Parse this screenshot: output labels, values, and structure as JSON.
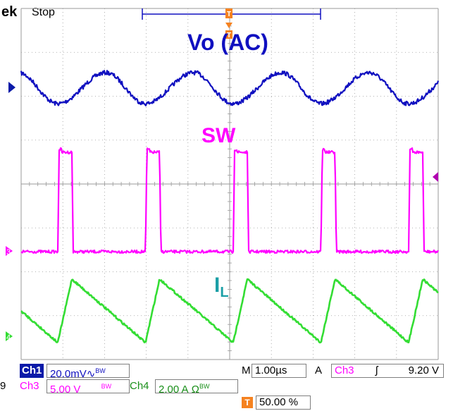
{
  "header": {
    "brand": "ek",
    "run_status": "Stop",
    "trigger_marker": "T"
  },
  "traces": {
    "vo_label": "Vo (AC)",
    "sw_label": "SW",
    "il_label": "I",
    "il_sub": "L"
  },
  "channels": {
    "ch1": {
      "label": "Ch1",
      "scale": "20.0mV",
      "suffix": "∿",
      "bw": "BW"
    },
    "ch3": {
      "label": "Ch3",
      "scale": "5.00 V",
      "bw": "BW"
    },
    "ch4": {
      "label": "Ch4",
      "scale": "2.00 A",
      "suffix": "Ω",
      "bw": "BW"
    }
  },
  "timebase": {
    "label": "M",
    "scale": "1.00µs"
  },
  "trigger": {
    "label": "A",
    "source": "Ch3",
    "slope": "ʃ",
    "level": "9.20 V"
  },
  "position": {
    "badge": "T",
    "value": "50.00 %"
  },
  "left_cut": "9",
  "colors": {
    "ch1": "#1010c0",
    "ch3": "#ff00ff",
    "ch4": "#33dd33",
    "trigger": "#f58220",
    "grid": "#9a9a9a"
  }
}
